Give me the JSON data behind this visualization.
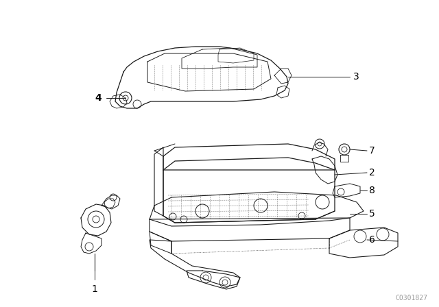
{
  "background_color": "#ffffff",
  "line_color": "#1a1a1a",
  "watermark": "C0301827",
  "watermark_fontsize": 7,
  "watermark_color": "#999999",
  "label_fontsize": 10,
  "label_color": "#000000"
}
